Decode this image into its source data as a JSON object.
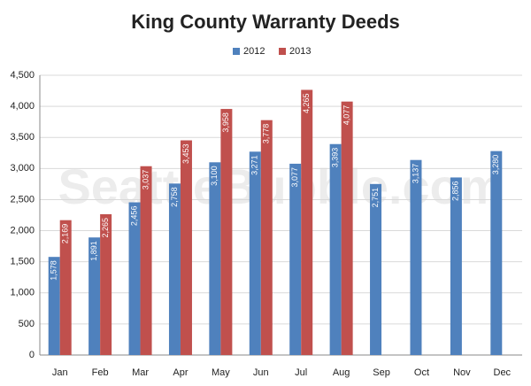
{
  "chart_data": {
    "type": "bar",
    "title": "King County Warranty Deeds",
    "watermark": "SeattleBubble.com",
    "categories": [
      "Jan",
      "Feb",
      "Mar",
      "Apr",
      "May",
      "Jun",
      "Jul",
      "Aug",
      "Sep",
      "Oct",
      "Nov",
      "Dec"
    ],
    "series": [
      {
        "name": "2012",
        "color": "#4f81bd",
        "values": [
          1578,
          1891,
          2456,
          2758,
          3100,
          3271,
          3077,
          3393,
          2751,
          3137,
          2856,
          3280
        ],
        "value_labels": [
          "1,578",
          "1,891",
          "2,456",
          "2,758",
          "3,100",
          "3,271",
          "3,077",
          "3,393",
          "2,751",
          "3,137",
          "2,856",
          "3,280"
        ]
      },
      {
        "name": "2013",
        "color": "#c0504d",
        "values": [
          2169,
          2265,
          3037,
          3453,
          3958,
          3778,
          4265,
          4077,
          null,
          null,
          null,
          null
        ],
        "value_labels": [
          "2,169",
          "2,265",
          "3,037",
          "3,453",
          "3,958",
          "3,778",
          "4,265",
          "4,077",
          null,
          null,
          null,
          null
        ]
      }
    ],
    "ylim": [
      0,
      4500
    ],
    "yticks": [
      0,
      500,
      {
        "value": 1000,
        "label": "1,000"
      },
      {
        "value": 1500,
        "label": "1,500"
      },
      {
        "value": 2000,
        "label": "2,000"
      },
      {
        "value": 2500,
        "label": "2,500"
      },
      {
        "value": 3000,
        "label": "3,000"
      },
      {
        "value": 3500,
        "label": "3,500"
      },
      {
        "value": 4000,
        "label": "4,000"
      },
      {
        "value": 4500,
        "label": "4,500"
      }
    ],
    "grid": true,
    "legend": "top"
  }
}
